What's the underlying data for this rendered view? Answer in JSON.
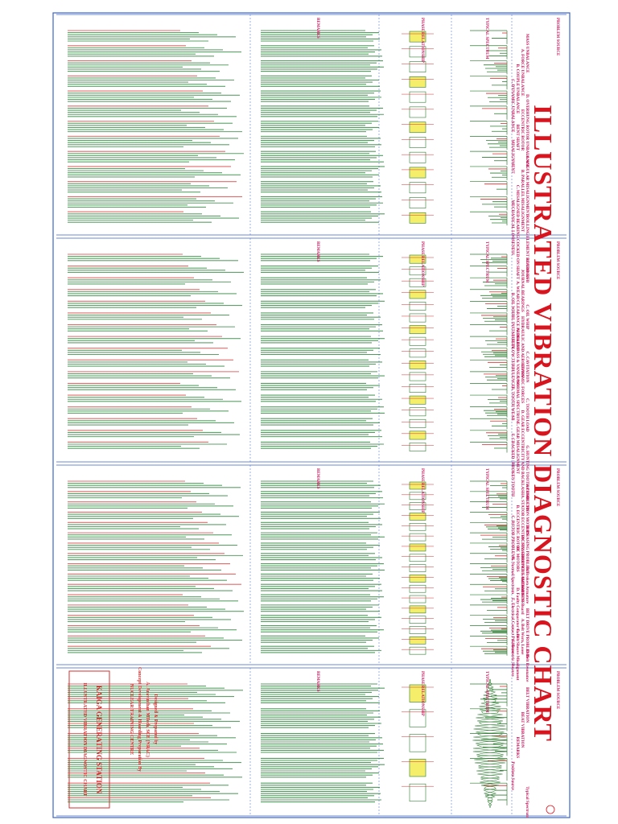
{
  "document": {
    "title": "ILLUSTRATED VIBRATION DIAGNOSTIC CHART",
    "colors": {
      "title": "#d8141e",
      "header": "#c2185b",
      "grid": "#3a64c8",
      "spectrum": "#2e7d32",
      "text": "#1b7a2b",
      "accent": "#d32f2f"
    },
    "column_headers": [
      "PROBLEM SOURCE",
      "TYPICAL SPECTRUM",
      "PHASE RELATIONSHIP",
      "REMARKS"
    ],
    "panels": [
      {
        "id": "panel-1",
        "items": [
          "MASS UNBALANCE",
          "A. FORCE UNBALANCE",
          "B. COUPLE UNBALANCE",
          "C. DYNAMIC UNBALANCE",
          "D. OVERHUNG ROTOR UNBALANCE",
          "ECCENTRIC ROTOR",
          "BENT SHAFT",
          "MISALIGNMENT",
          "A. ANGULAR MISALIGNMENT",
          "B. PARALLEL MISALIGNMENT",
          "C. MISALIGNED BEARING COCKED ON SHAFT",
          "MECHANICAL LOOSENESS",
          "ROLLING ELEMENT BEARINGS"
        ]
      },
      {
        "id": "panel-2",
        "items": [
          "ROTOR RUB",
          "JOURNAL BEARINGS",
          "A. WEAR/CLEARANCE PROBLEMS",
          "B. OIL WHIRL INSTABILITY",
          "C. OIL WHIP",
          "HYDRAULIC AND AERODYNAMIC FORCES",
          "A. BLADE PASS & VANE PASS",
          "B. FLOW TURBULENCE",
          "C. CAVITATION",
          "GEARS",
          "A. NORMAL SPECTRUM",
          "B. TOOTH WEAR",
          "C. TOOTH LOAD",
          "D. GEAR ECCENTRICITY AND BACKLASH",
          "E. GEAR MISALIGNMENT",
          "F. CRACKED / BROKEN TOOTH",
          "G. HUNTING TOOTH PROBLEMS"
        ]
      },
      {
        "id": "panel-3",
        "items": [
          "AC INDUCTION MOTORS",
          "A. STATOR ECCENTRICITY, SHORTED LAMINATIONS",
          "B. ECCENTRIC ROTOR",
          "C. ROTOR PROBLEMS",
          "D. PHASING PROBLEM",
          "AC SYNCHRONOUS MOTORS",
          "DC MOTORS",
          "A. Normal Spectrum",
          "B. Broken Armature",
          "C. Loose SCR Board",
          "D. Faulty Comparator Card",
          "E. Electrical Contact Problems",
          "BELT DRIVE PROBLEMS",
          "A. Belt Worn, Loose",
          "B. Belt/Sheave Misalignment",
          "C. Eccentric Sheaves",
          "D. Belt Resonance"
        ]
      },
      {
        "id": "panel-4",
        "items": [
          "BELT VIBRATION",
          "BEAT VIBRATION",
          "REMARKS",
          "Problem Source",
          "Typical Spectrum"
        ]
      }
    ],
    "credits": {
      "designed_by": "Designed & Prepared by",
      "author": "A. Aravinthan MTech, SCE (NRAC)",
      "concept": "Concept Development & Hoarding Preparation By",
      "centre": "NUCLEAR TRAINING CENTRE",
      "station": "KAIGA GENERATING STATION",
      "chart_name": "ILLUSTRATED VIBRATION DIAGNOSTIC CHART"
    }
  }
}
